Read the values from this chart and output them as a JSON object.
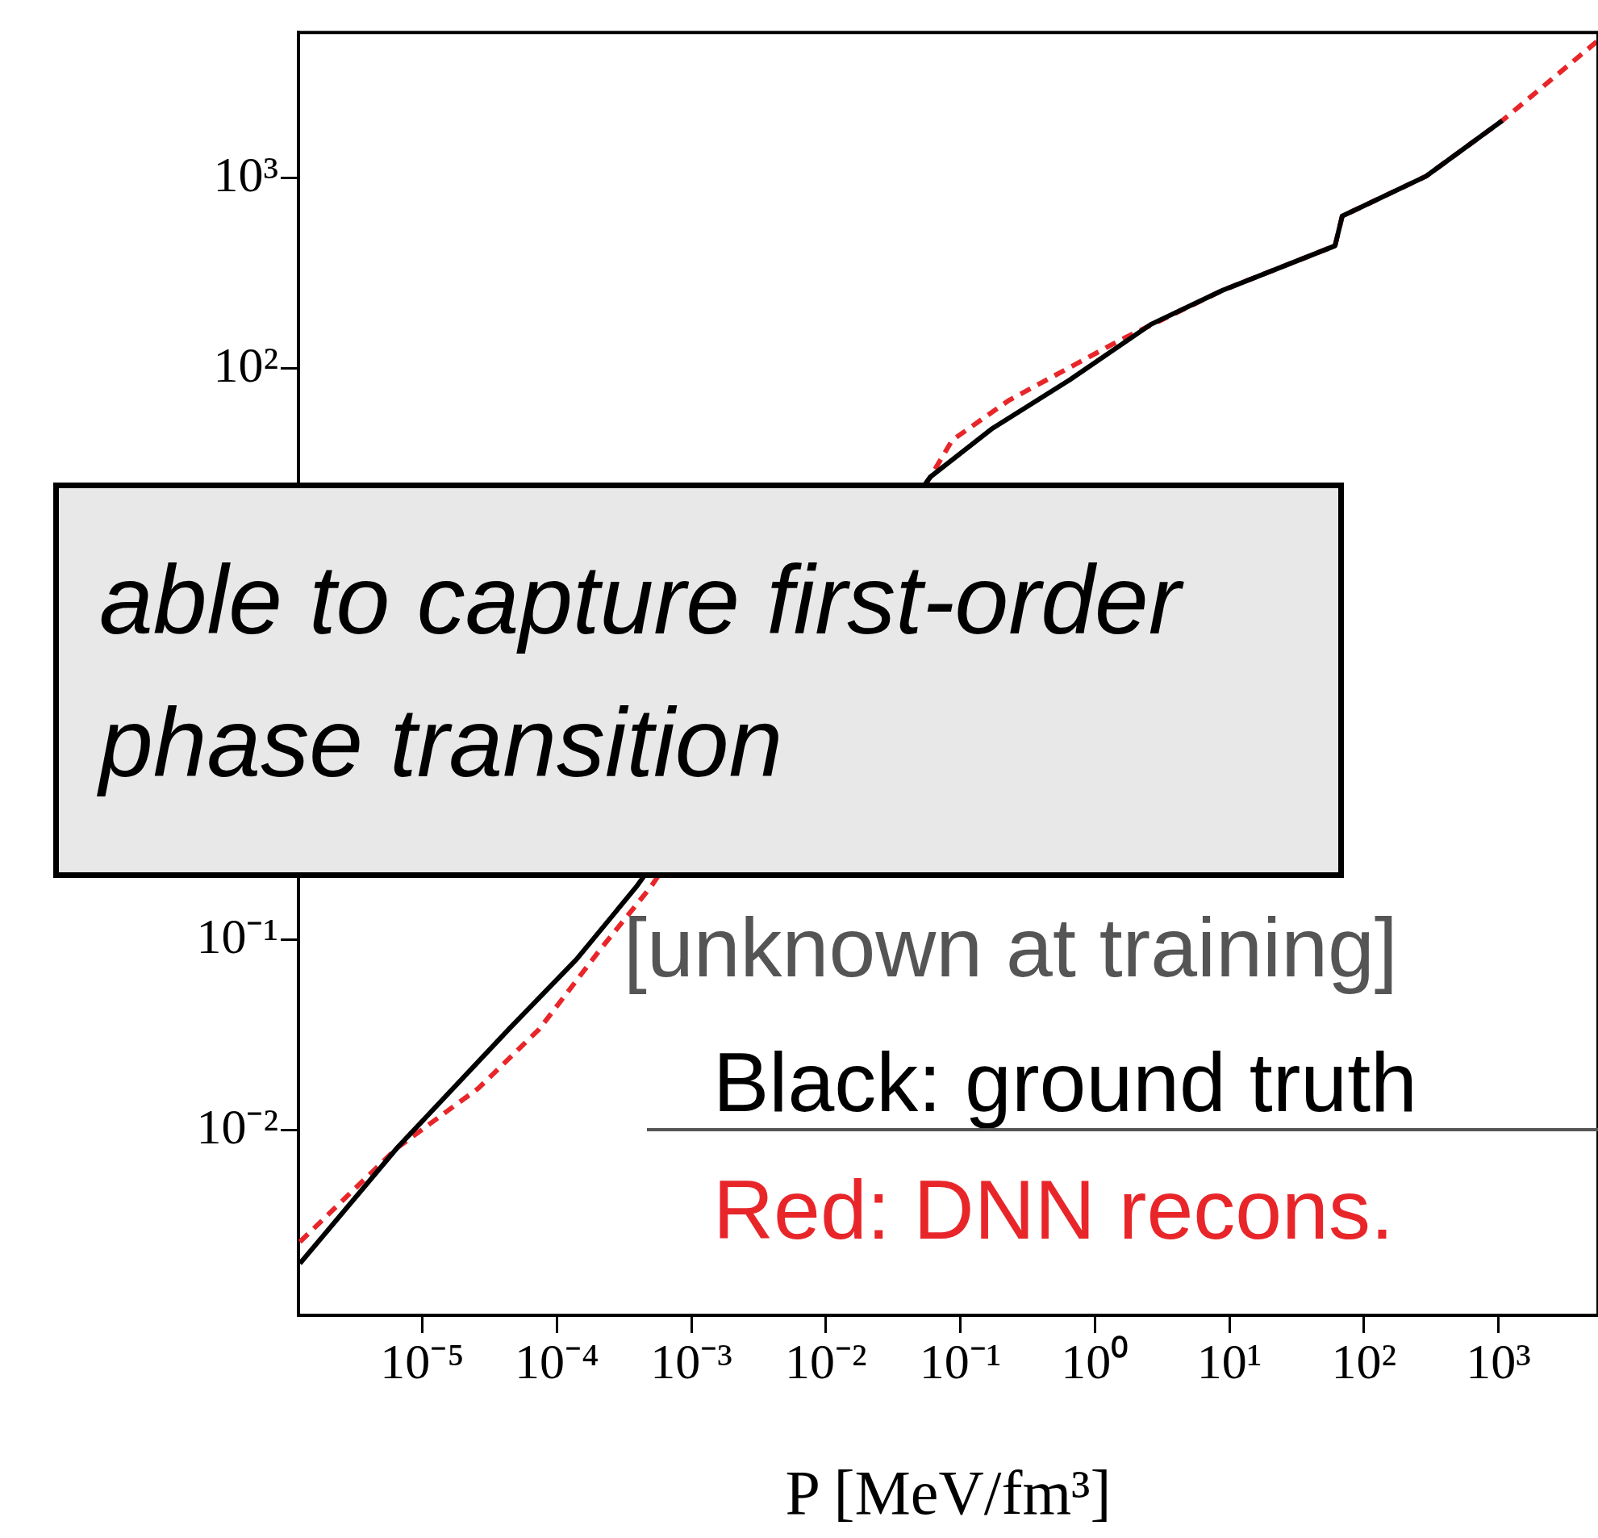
{
  "chart_data": {
    "type": "line",
    "log": "xy",
    "xlabel": "P [MeV/fm³]",
    "xlim": [
      1.2e-06,
      5500
    ],
    "ylim": [
      0.00107,
      5800
    ],
    "xticks": [
      {
        "value": 1e-05,
        "label": "10⁻⁵"
      },
      {
        "value": 0.0001,
        "label": "10⁻⁴"
      },
      {
        "value": 0.001,
        "label": "10⁻³"
      },
      {
        "value": 0.01,
        "label": "10⁻²"
      },
      {
        "value": 0.1,
        "label": "10⁻¹"
      },
      {
        "value": 1,
        "label": "10⁰"
      },
      {
        "value": 10,
        "label": "10¹"
      },
      {
        "value": 100,
        "label": "10²"
      },
      {
        "value": 1000,
        "label": "10³"
      }
    ],
    "yticks": [
      {
        "value": 0.01,
        "label": "10⁻²"
      },
      {
        "value": 0.1,
        "label": "10⁻¹"
      },
      {
        "value": 100,
        "label": "10²"
      },
      {
        "value": 1000,
        "label": "10³"
      }
    ],
    "grid": false,
    "marker": "none",
    "series": [
      {
        "color": "#000000",
        "line_style": "solid",
        "x": [
          1.23e-06,
          6.5e-06,
          4.4e-05,
          0.00014,
          0.00039,
          0.06,
          0.17,
          0.65,
          2.6,
          8.9,
          61,
          69,
          290,
          1070
        ],
        "values": [
          0.002,
          0.0081,
          0.034,
          0.079,
          0.19,
          27,
          48,
          87,
          170,
          257,
          440,
          630,
          1020,
          2000
        ]
      },
      {
        "color": "#e8262a",
        "line_style": "dashed",
        "x": [
          1.23e-06,
          6.5e-06,
          2.6e-05,
          7.4e-05,
          0.00021,
          0.0005,
          0.06,
          0.087,
          0.23,
          1.55,
          8.9,
          61,
          69,
          290,
          1070,
          5400
        ],
        "values": [
          0.0026,
          0.0081,
          0.0166,
          0.034,
          0.089,
          0.19,
          27,
          42,
          68,
          141,
          257,
          440,
          630,
          1020,
          2000,
          5200
        ]
      }
    ],
    "annotations": [
      "able to capture first-order phase transition",
      "[unknown at training]",
      "Black: ground truth",
      "Red: DNN recons."
    ]
  }
}
